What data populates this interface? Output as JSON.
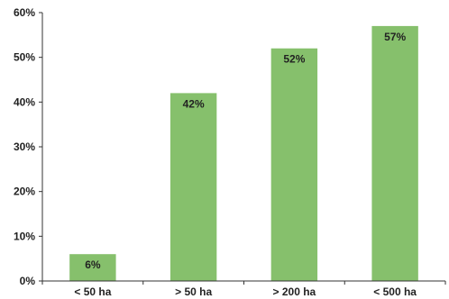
{
  "chart_data": {
    "type": "bar",
    "categories": [
      "< 50 ha",
      "> 50 ha",
      "> 200 ha",
      "< 500 ha"
    ],
    "values": [
      6,
      42,
      52,
      57
    ],
    "data_labels": [
      "6%",
      "42%",
      "52%",
      "57%"
    ],
    "ylim": [
      0,
      60
    ],
    "yticks": [
      0,
      10,
      20,
      30,
      40,
      50,
      60
    ],
    "ytick_labels": [
      "0%",
      "10%",
      "20%",
      "30%",
      "40%",
      "50%",
      "60%"
    ],
    "title": "",
    "xlabel": "",
    "ylabel": "",
    "grid": false,
    "legend": "none",
    "colors": {
      "bar": "#86c06c",
      "axis": "#333333"
    }
  }
}
